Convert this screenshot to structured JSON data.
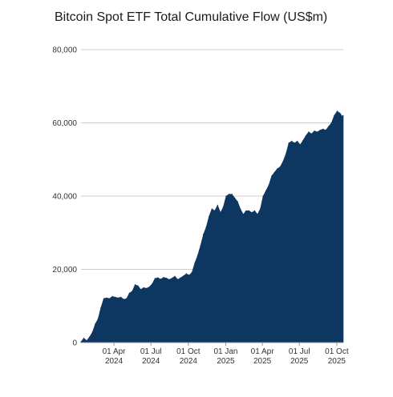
{
  "chart_data": {
    "type": "area",
    "title": "Bitcoin Spot ETF Total Cumulative Flow (US$m)",
    "xlabel": "",
    "ylabel": "",
    "ylim": [
      0,
      80000
    ],
    "y_ticks": [
      0,
      20000,
      40000,
      60000,
      80000
    ],
    "y_tick_labels": [
      "0",
      "20,000",
      "40,000",
      "60,000",
      "80,000"
    ],
    "x_range": [
      "2024-01-11",
      "2025-10-17"
    ],
    "x_ticks": [
      {
        "date": "2024-04-01",
        "line1": "01 Apr",
        "line2": "2024"
      },
      {
        "date": "2024-07-01",
        "line1": "01 Jul",
        "line2": "2024"
      },
      {
        "date": "2024-10-01",
        "line1": "01 Oct",
        "line2": "2024"
      },
      {
        "date": "2025-01-01",
        "line1": "01 Jan",
        "line2": "2025"
      },
      {
        "date": "2025-04-01",
        "line1": "01 Apr",
        "line2": "2025"
      },
      {
        "date": "2025-07-01",
        "line1": "01 Jul",
        "line2": "2025"
      },
      {
        "date": "2025-10-01",
        "line1": "01 Oct",
        "line2": "2025"
      }
    ],
    "grid": true,
    "legend": "none",
    "colors": {
      "fill": "#0d3660",
      "grid": "#cccccc",
      "baseline": "#999999"
    },
    "x": [
      "2024-01-11",
      "2024-01-18",
      "2024-01-25",
      "2024-02-01",
      "2024-02-08",
      "2024-02-15",
      "2024-02-22",
      "2024-02-29",
      "2024-03-07",
      "2024-03-14",
      "2024-03-21",
      "2024-03-28",
      "2024-04-04",
      "2024-04-11",
      "2024-04-18",
      "2024-04-25",
      "2024-05-02",
      "2024-05-09",
      "2024-05-16",
      "2024-05-23",
      "2024-05-30",
      "2024-06-06",
      "2024-06-13",
      "2024-06-20",
      "2024-06-27",
      "2024-07-04",
      "2024-07-11",
      "2024-07-18",
      "2024-07-25",
      "2024-08-01",
      "2024-08-08",
      "2024-08-15",
      "2024-08-22",
      "2024-08-29",
      "2024-09-05",
      "2024-09-12",
      "2024-09-19",
      "2024-09-26",
      "2024-10-03",
      "2024-10-10",
      "2024-10-17",
      "2024-10-24",
      "2024-10-31",
      "2024-11-07",
      "2024-11-14",
      "2024-11-21",
      "2024-11-28",
      "2024-12-05",
      "2024-12-12",
      "2024-12-19",
      "2024-12-26",
      "2025-01-02",
      "2025-01-09",
      "2025-01-16",
      "2025-01-23",
      "2025-01-30",
      "2025-02-06",
      "2025-02-13",
      "2025-02-20",
      "2025-02-27",
      "2025-03-06",
      "2025-03-13",
      "2025-03-20",
      "2025-03-27",
      "2025-04-03",
      "2025-04-10",
      "2025-04-17",
      "2025-04-24",
      "2025-05-01",
      "2025-05-08",
      "2025-05-15",
      "2025-05-22",
      "2025-05-29",
      "2025-06-05",
      "2025-06-12",
      "2025-06-19",
      "2025-06-26",
      "2025-07-03",
      "2025-07-10",
      "2025-07-17",
      "2025-07-24",
      "2025-07-31",
      "2025-08-07",
      "2025-08-14",
      "2025-08-21",
      "2025-08-28",
      "2025-09-04",
      "2025-09-11",
      "2025-09-18",
      "2025-09-25",
      "2025-10-02",
      "2025-10-07",
      "2025-10-10",
      "2025-10-14",
      "2025-10-17"
    ],
    "values": [
      200,
      1200,
      500,
      1500,
      2800,
      5000,
      6500,
      9500,
      12000,
      12200,
      12000,
      12600,
      12400,
      12200,
      12400,
      11800,
      12000,
      13500,
      14000,
      15800,
      15500,
      14500,
      15000,
      14800,
      15200,
      16000,
      17500,
      17700,
      17300,
      17800,
      17600,
      17200,
      17600,
      18100,
      17200,
      17700,
      18200,
      18800,
      18400,
      19200,
      21800,
      23800,
      26500,
      29500,
      31500,
      34500,
      36500,
      36000,
      37500,
      35500,
      37000,
      40000,
      40500,
      40500,
      39500,
      38500,
      36500,
      35000,
      36000,
      36000,
      35500,
      36000,
      35000,
      36500,
      40000,
      41500,
      43000,
      45500,
      46500,
      47500,
      48000,
      49500,
      51500,
      54500,
      55000,
      54500,
      55000,
      54000,
      55200,
      56500,
      57500,
      57000,
      57800,
      57500,
      58000,
      58300,
      58000,
      59000,
      60000,
      62000,
      63200,
      62800,
      62500,
      61800,
      62000
    ]
  }
}
